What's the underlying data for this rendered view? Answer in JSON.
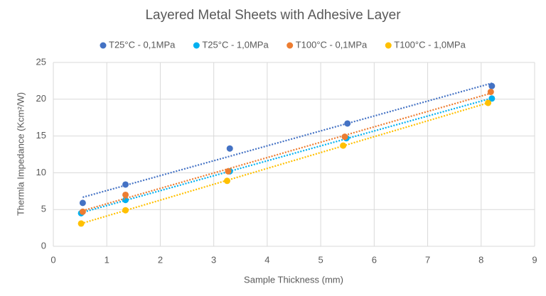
{
  "chart_data": {
    "type": "scatter",
    "title": "Layered Metal Sheets with Adhesive Layer",
    "x_label": "Sample Thickness (mm)",
    "y_label": "Thermla Impedance (Kcm²/W)",
    "series": [
      {
        "name": "T25°C - 0,1MPa",
        "color": "#4472c4",
        "x": [
          0.55,
          1.35,
          3.3,
          5.5,
          8.2
        ],
        "values": [
          5.9,
          8.4,
          13.3,
          16.7,
          21.8
        ]
      },
      {
        "name": "T25°C - 1,0MPa",
        "color": "#00b0f0",
        "x": [
          0.52,
          1.35,
          3.3,
          5.48,
          8.2
        ],
        "values": [
          4.5,
          6.3,
          10.2,
          14.7,
          20.1
        ]
      },
      {
        "name": "T100°C - 0,1MPa",
        "color": "#ed7d31",
        "x": [
          0.55,
          1.35,
          3.27,
          5.45,
          8.18
        ],
        "values": [
          4.7,
          7.0,
          10.2,
          14.9,
          21.0
        ]
      },
      {
        "name": "T100°C - 1,0MPa",
        "color": "#ffc000",
        "x": [
          0.52,
          1.35,
          3.25,
          5.42,
          8.13
        ],
        "values": [
          3.1,
          4.9,
          8.9,
          13.7,
          19.5
        ]
      }
    ],
    "trendline": "linear",
    "xlim": [
      0,
      9
    ],
    "xticks": [
      0,
      1,
      2,
      3,
      4,
      5,
      6,
      7,
      8,
      9
    ],
    "ylim": [
      0,
      25
    ],
    "yticks": [
      0,
      5,
      10,
      15,
      20,
      25
    ],
    "grid": true,
    "legend": "top"
  }
}
